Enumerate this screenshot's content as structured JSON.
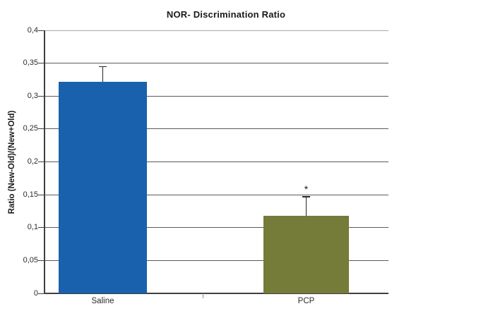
{
  "chart_data": {
    "type": "bar",
    "title": "NOR- Discrimination Ratio",
    "ylabel": "Ratio (New-Old)/(New+Old)",
    "xlabel": "",
    "categories": [
      "Saline",
      "PCP"
    ],
    "values": [
      0.322,
      0.118
    ],
    "errors_plus": [
      0.023,
      0.029
    ],
    "bar_colors": [
      "#1961ac",
      "#757b38"
    ],
    "ylim": [
      0,
      0.4
    ],
    "ytick_values": [
      0,
      0.05,
      0.1,
      0.15,
      0.2,
      0.25,
      0.3,
      0.35,
      0.4
    ],
    "ytick_labels": [
      "0",
      "0,05",
      "0,1",
      "0,15",
      "0,2",
      "0,25",
      "0,3",
      "0,35",
      "0,4"
    ],
    "grid": true,
    "legend": false,
    "annotations": [
      {
        "text": "*",
        "category": "PCP",
        "y": 0.155
      }
    ],
    "colors": {
      "gridline": "#5a5a5a",
      "top_gridline": "#a8a8a8",
      "axis": "#3f3f3f",
      "mid_tick": "#8c8c8c",
      "error_bar": "#262626",
      "text": "#1a1a1a"
    }
  }
}
